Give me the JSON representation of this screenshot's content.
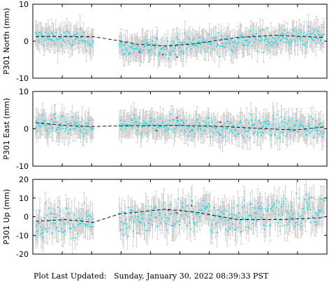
{
  "footer": {
    "label": "Plot Last Updated:",
    "timestamp": "Sunday, January 30, 2022 08:39:33 PST"
  },
  "colors": {
    "point": "#22dde8",
    "outlier": "#dd2222",
    "errorbar": "#c8c8c8",
    "model": "#000000",
    "frame": "#000000"
  },
  "chart_data": [
    {
      "type": "scatter",
      "ylabel": "P301 North (mm)",
      "ylim": [
        -10,
        10
      ],
      "yticks": [
        -10,
        0,
        10
      ],
      "grid": false,
      "x_tick_count": 9,
      "segments": [
        {
          "x": [
            0.0,
            0.2
          ],
          "mean": [
            1.0,
            0.2
          ],
          "spread": 1.3,
          "err": 2.8
        },
        {
          "x": [
            0.29,
            0.47
          ],
          "mean": [
            -1.8,
            -2.0
          ],
          "spread": 1.2,
          "err": 2.8
        },
        {
          "x": [
            0.47,
            1.0
          ],
          "mean": [
            -1.2,
            1.4
          ],
          "spread": 1.3,
          "err": 2.8
        }
      ],
      "model": [
        [
          0.0,
          1.3
        ],
        [
          0.2,
          1.2
        ],
        [
          0.29,
          0.1
        ],
        [
          0.35,
          -0.8
        ],
        [
          0.45,
          -1.3
        ],
        [
          0.55,
          -0.7
        ],
        [
          0.7,
          1.0
        ],
        [
          0.83,
          1.6
        ],
        [
          1.0,
          1.0
        ]
      ],
      "outliers": [
        [
          0.49,
          -4.3
        ],
        [
          0.44,
          -3.6
        ],
        [
          0.36,
          -2.9
        ]
      ]
    },
    {
      "type": "scatter",
      "ylabel": "P301 East (mm)",
      "ylim": [
        -10,
        10
      ],
      "yticks": [
        -10,
        0,
        10
      ],
      "grid": false,
      "x_tick_count": 9,
      "segments": [
        {
          "x": [
            0.0,
            0.2
          ],
          "mean": [
            1.6,
            0.0
          ],
          "spread": 1.2,
          "err": 2.8
        },
        {
          "x": [
            0.29,
            0.6
          ],
          "mean": [
            0.8,
            0.5
          ],
          "spread": 1.2,
          "err": 2.8
        },
        {
          "x": [
            0.6,
            1.0
          ],
          "mean": [
            0.3,
            0.3
          ],
          "spread": 1.5,
          "err": 2.8
        }
      ],
      "model": [
        [
          0.0,
          1.6
        ],
        [
          0.1,
          0.9
        ],
        [
          0.2,
          0.6
        ],
        [
          0.29,
          0.8
        ],
        [
          0.5,
          0.9
        ],
        [
          0.65,
          0.6
        ],
        [
          0.8,
          0.0
        ],
        [
          0.9,
          -0.3
        ],
        [
          1.0,
          0.5
        ]
      ],
      "outliers": [
        [
          0.42,
          -0.5
        ],
        [
          0.49,
          3.0
        ],
        [
          0.64,
          1.8
        ]
      ]
    },
    {
      "type": "scatter",
      "ylabel": "P301 Up (mm)",
      "ylim": [
        -20,
        20
      ],
      "yticks": [
        -20,
        -10,
        0,
        10,
        20
      ],
      "grid": false,
      "x_tick_count": 9,
      "segments": [
        {
          "x": [
            0.0,
            0.2
          ],
          "mean": [
            -3.0,
            -2.5
          ],
          "spread": 3.5,
          "err": 6.5
        },
        {
          "x": [
            0.29,
            0.6
          ],
          "mean": [
            -1.5,
            2.0
          ],
          "spread": 4.0,
          "err": 6.5
        },
        {
          "x": [
            0.6,
            1.0
          ],
          "mean": [
            -1.0,
            4.0
          ],
          "spread": 4.5,
          "err": 6.5
        }
      ],
      "model": [
        [
          0.0,
          -2.5
        ],
        [
          0.1,
          -1.5
        ],
        [
          0.2,
          -3.0
        ],
        [
          0.29,
          1.5
        ],
        [
          0.45,
          4.0
        ],
        [
          0.55,
          2.5
        ],
        [
          0.7,
          -1.5
        ],
        [
          0.85,
          -1.5
        ],
        [
          1.0,
          -0.5
        ]
      ],
      "outliers": [
        [
          0.49,
          2.0
        ],
        [
          0.54,
          6.0
        ],
        [
          0.46,
          3.5
        ]
      ]
    }
  ]
}
